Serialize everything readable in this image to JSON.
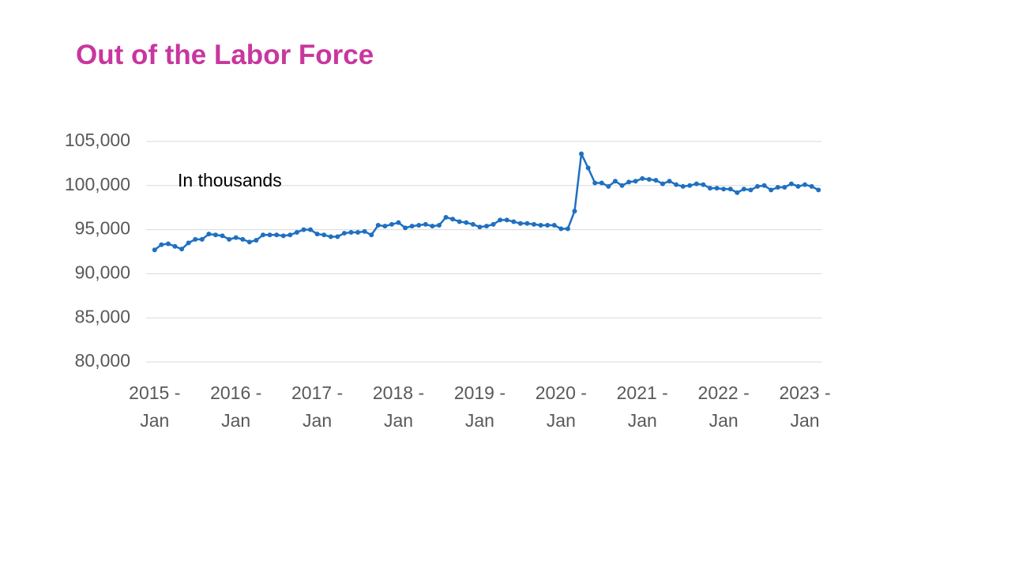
{
  "chart_data": {
    "type": "line",
    "title": "Out of the Labor Force",
    "annotation": "In thousands",
    "categories": [
      "2015 - Jan",
      null,
      null,
      null,
      null,
      null,
      null,
      null,
      null,
      null,
      null,
      null,
      "2016 - Jan",
      null,
      null,
      null,
      null,
      null,
      null,
      null,
      null,
      null,
      null,
      null,
      "2017 - Jan",
      null,
      null,
      null,
      null,
      null,
      null,
      null,
      null,
      null,
      null,
      null,
      "2018 - Jan",
      null,
      null,
      null,
      null,
      null,
      null,
      null,
      null,
      null,
      null,
      null,
      "2019 - Jan",
      null,
      null,
      null,
      null,
      null,
      null,
      null,
      null,
      null,
      null,
      null,
      "2020 - Jan",
      null,
      null,
      null,
      null,
      null,
      null,
      null,
      null,
      null,
      null,
      null,
      "2021 - Jan",
      null,
      null,
      null,
      null,
      null,
      null,
      null,
      null,
      null,
      null,
      null,
      "2022 - Jan",
      null,
      null,
      null,
      null,
      null,
      null,
      null,
      null,
      null,
      null,
      null,
      "2023 - Jan",
      null,
      null
    ],
    "values": [
      92700,
      93300,
      93400,
      93100,
      92800,
      93500,
      93900,
      93900,
      94500,
      94400,
      94300,
      93900,
      94100,
      93900,
      93600,
      93800,
      94400,
      94400,
      94400,
      94300,
      94400,
      94700,
      95000,
      95000,
      94500,
      94400,
      94200,
      94200,
      94600,
      94700,
      94700,
      94800,
      94400,
      95500,
      95400,
      95600,
      95800,
      95200,
      95400,
      95500,
      95600,
      95400,
      95500,
      96400,
      96200,
      95900,
      95800,
      95600,
      95300,
      95400,
      95600,
      96100,
      96100,
      95900,
      95700,
      95700,
      95600,
      95500,
      95500,
      95500,
      95100,
      95100,
      97100,
      103600,
      102000,
      100300,
      100300,
      99900,
      100500,
      100000,
      100400,
      100500,
      100800,
      100700,
      100600,
      100200,
      100500,
      100100,
      99900,
      100000,
      100200,
      100100,
      99700,
      99700,
      99600,
      99600,
      99200,
      99600,
      99500,
      99900,
      100000,
      99500,
      99800,
      99800,
      100200,
      99900,
      100100,
      99900,
      99500
    ],
    "color": "#1F70C1",
    "ylim": [
      80000,
      105000
    ],
    "yticks": [
      {
        "value": 80000,
        "label": "80,000"
      },
      {
        "value": 85000,
        "label": "85,000"
      },
      {
        "value": 90000,
        "label": "90,000"
      },
      {
        "value": 95000,
        "label": "95,000"
      },
      {
        "value": 100000,
        "label": "100,000"
      },
      {
        "value": 105000,
        "label": "105,000"
      }
    ],
    "grid": true
  }
}
